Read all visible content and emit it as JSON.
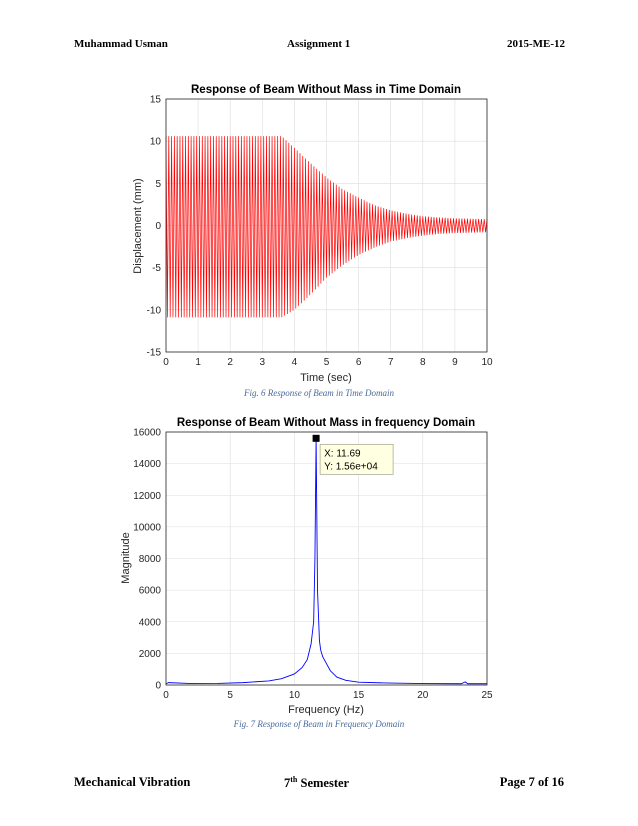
{
  "header": {
    "left": "Muhammad Usman",
    "center": "Assignment 1",
    "right": "2015-ME-12"
  },
  "footer": {
    "left": "Mechanical Vibration",
    "center_num": "7",
    "center_sup": "th",
    "center_rest": " Semester",
    "right": "Page 7 of 16"
  },
  "captions": {
    "fig6": "Fig.  6 Response of Beam in Time Domain",
    "fig7": "Fig.  7 Response of Beam in Frequency Domain"
  },
  "chart_data": [
    {
      "type": "line",
      "title": "Response of Beam Without Mass in Time Domain",
      "xlabel": "Time (sec)",
      "ylabel": "Displacement (mm)",
      "xlim": [
        0,
        10
      ],
      "ylim": [
        -15,
        15
      ],
      "xticks": [
        "0",
        "1",
        "2",
        "3",
        "4",
        "5",
        "6",
        "7",
        "8",
        "9",
        "10"
      ],
      "yticks": [
        "15",
        "10",
        "5",
        "0",
        "-5",
        "-10",
        "-15"
      ],
      "grid": true,
      "color": "#ff0000",
      "envelope": {
        "time_sec": [
          0,
          3.6,
          4.0,
          4.5,
          5.0,
          5.5,
          6.0,
          6.5,
          7.0,
          7.5,
          8.0,
          8.5,
          9.0,
          9.5,
          10.0
        ],
        "upper_mm": [
          10.6,
          10.6,
          9.2,
          7.4,
          5.7,
          4.3,
          3.3,
          2.4,
          1.8,
          1.4,
          1.1,
          0.95,
          0.85,
          0.8,
          0.75
        ],
        "lower_mm": [
          -10.9,
          -10.9,
          -10.0,
          -8.2,
          -6.2,
          -4.7,
          -3.5,
          -2.6,
          -1.9,
          -1.5,
          -1.2,
          -1.0,
          -0.9,
          -0.85,
          -0.8
        ]
      },
      "oscillation_cycles": 115
    },
    {
      "type": "line",
      "title": "Response of Beam Without Mass in frequency Domain",
      "xlabel": "Frequency (Hz)",
      "ylabel": "Magnitude",
      "xlim": [
        0,
        25
      ],
      "ylim": [
        0,
        16000
      ],
      "xticks": [
        "0",
        "5",
        "10",
        "15",
        "20",
        "25"
      ],
      "yticks": [
        "16000",
        "14000",
        "12000",
        "10000",
        "8000",
        "6000",
        "4000",
        "2000",
        "0"
      ],
      "grid": true,
      "color": "#0000ff",
      "x": [
        0,
        0.2,
        2,
        4,
        6,
        8,
        9,
        10,
        10.6,
        11.0,
        11.3,
        11.5,
        11.6,
        11.69,
        11.8,
        11.95,
        12.05,
        12.2,
        12.4,
        12.8,
        13.3,
        14,
        15,
        17,
        20,
        23,
        23.3,
        23.5,
        25
      ],
      "y": [
        80,
        150,
        90,
        100,
        150,
        260,
        400,
        700,
        1100,
        1600,
        2600,
        4000,
        8000,
        15600,
        6000,
        2800,
        2200,
        1800,
        1500,
        900,
        500,
        300,
        180,
        130,
        90,
        80,
        200,
        80,
        80
      ],
      "datatip": {
        "x_label": "X: 11.69",
        "y_label": "Y: 1.56e+04",
        "x": 11.69,
        "y": 15600
      }
    }
  ]
}
